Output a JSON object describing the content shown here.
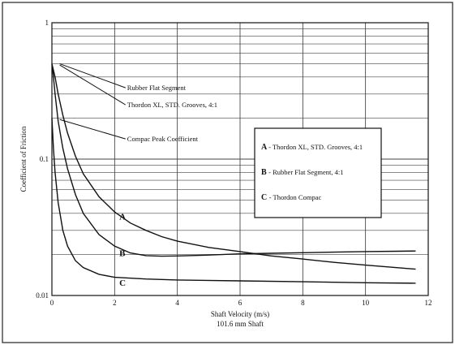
{
  "chart_data": {
    "type": "line",
    "x_scale": "linear",
    "y_scale": "log",
    "xlim": [
      0,
      12
    ],
    "ylim": [
      0.01,
      1
    ],
    "x_ticks": [
      0,
      2,
      4,
      6,
      8,
      10,
      12
    ],
    "y_ticks": [
      {
        "value": 0.01,
        "label": "0.01"
      },
      {
        "value": 0.1,
        "label": "0.1"
      },
      {
        "value": 1,
        "label": "1"
      }
    ],
    "grid": true,
    "xlabel": "Shaft Velocity (m/s)",
    "xlabel_sub": "101.6 mm Shaft",
    "ylabel": "Coefficient of Friction",
    "series": [
      {
        "key": "A",
        "name": "Thordon XL, STD. Grooves, 4:1",
        "points": [
          [
            0,
            0.5
          ],
          [
            0.1,
            0.4
          ],
          [
            0.2,
            0.3
          ],
          [
            0.35,
            0.21
          ],
          [
            0.5,
            0.155
          ],
          [
            0.75,
            0.105
          ],
          [
            1,
            0.078
          ],
          [
            1.5,
            0.053
          ],
          [
            2,
            0.041
          ],
          [
            2.5,
            0.034
          ],
          [
            3,
            0.03
          ],
          [
            3.5,
            0.027
          ],
          [
            4,
            0.025
          ],
          [
            5,
            0.0225
          ],
          [
            6,
            0.021
          ],
          [
            7,
            0.0195
          ],
          [
            8,
            0.0185
          ],
          [
            9,
            0.0175
          ],
          [
            10,
            0.0167
          ],
          [
            11,
            0.016
          ],
          [
            11.6,
            0.0156
          ]
        ]
      },
      {
        "key": "B",
        "name": "Rubber Flat Segment, 4:1",
        "points": [
          [
            0,
            0.5
          ],
          [
            0.05,
            0.4
          ],
          [
            0.1,
            0.3
          ],
          [
            0.2,
            0.19
          ],
          [
            0.35,
            0.12
          ],
          [
            0.5,
            0.085
          ],
          [
            0.75,
            0.055
          ],
          [
            1,
            0.04
          ],
          [
            1.5,
            0.028
          ],
          [
            2,
            0.023
          ],
          [
            2.5,
            0.0205
          ],
          [
            3,
            0.0196
          ],
          [
            3.5,
            0.0194
          ],
          [
            4,
            0.0195
          ],
          [
            5,
            0.0198
          ],
          [
            6,
            0.0202
          ],
          [
            7,
            0.0204
          ],
          [
            8,
            0.0206
          ],
          [
            9,
            0.0208
          ],
          [
            10,
            0.021
          ],
          [
            11,
            0.0211
          ],
          [
            11.6,
            0.0212
          ]
        ]
      },
      {
        "key": "C",
        "name": "Thordon Compac",
        "points": [
          [
            0,
            0.2
          ],
          [
            0.05,
            0.12
          ],
          [
            0.1,
            0.08
          ],
          [
            0.2,
            0.048
          ],
          [
            0.35,
            0.03
          ],
          [
            0.5,
            0.023
          ],
          [
            0.75,
            0.018
          ],
          [
            1,
            0.016
          ],
          [
            1.5,
            0.0143
          ],
          [
            2,
            0.0136
          ],
          [
            3,
            0.0132
          ],
          [
            4,
            0.013
          ],
          [
            6,
            0.0128
          ],
          [
            8,
            0.0126
          ],
          [
            10,
            0.0124
          ],
          [
            11.6,
            0.0123
          ]
        ]
      }
    ],
    "curve_labels": [
      {
        "text": "A",
        "x": 2.15,
        "y": 0.036
      },
      {
        "text": "B",
        "x": 2.15,
        "y": 0.0195
      },
      {
        "text": "C",
        "x": 2.15,
        "y": 0.0118
      }
    ],
    "annotations": [
      {
        "text": "Rubber Flat Segment",
        "tip": [
          0.25,
          0.5
        ],
        "at": [
          2.4,
          0.32
        ]
      },
      {
        "text": "Thordon XL, STD. Grooves, 4:1",
        "tip": [
          0.25,
          0.49
        ],
        "at": [
          2.4,
          0.24
        ]
      },
      {
        "text": "Compac Peak Coefficient",
        "tip": [
          0.25,
          0.195
        ],
        "at": [
          2.4,
          0.135
        ]
      }
    ],
    "legend": {
      "position": "right",
      "entries": [
        {
          "key": "A",
          "text": "- Thordon XL, STD. Grooves, 4:1"
        },
        {
          "key": "B",
          "text": "- Rubber Flat Segment, 4:1"
        },
        {
          "key": "C",
          "text": "- Thordon Compac"
        }
      ]
    }
  }
}
